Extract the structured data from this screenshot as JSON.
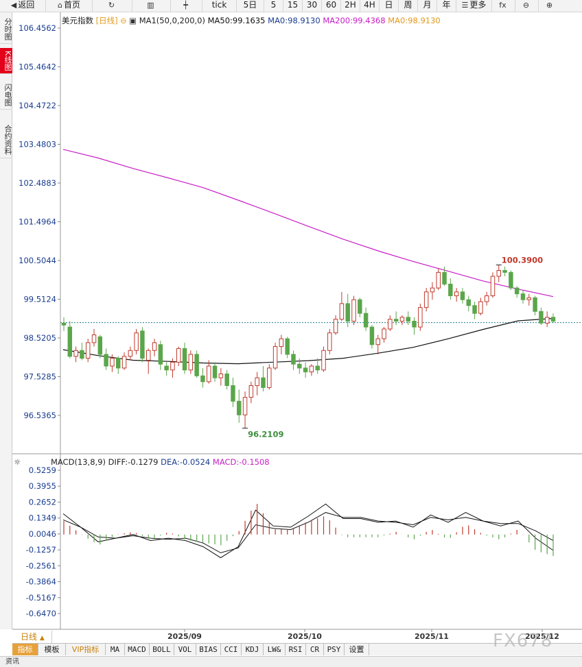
{
  "toolbar": {
    "items": [
      {
        "label": "返回",
        "icon": "back-arrow-icon"
      },
      {
        "label": "首页",
        "icon": "home-icon"
      },
      {
        "label": "",
        "icon": "refresh-icon"
      },
      {
        "label": "",
        "icon": "chart-bars-icon"
      },
      {
        "label": "",
        "icon": "candlestick-icon"
      },
      {
        "label": "tick",
        "icon": ""
      },
      {
        "label": "5日",
        "icon": ""
      },
      {
        "label": "5",
        "icon": ""
      },
      {
        "label": "15",
        "icon": ""
      },
      {
        "label": "30",
        "icon": ""
      },
      {
        "label": "60",
        "icon": ""
      },
      {
        "label": "2H",
        "icon": ""
      },
      {
        "label": "4H",
        "icon": ""
      },
      {
        "label": "日",
        "icon": ""
      },
      {
        "label": "周",
        "icon": ""
      },
      {
        "label": "月",
        "icon": ""
      },
      {
        "label": "年",
        "icon": ""
      },
      {
        "label": "更多",
        "icon": "menu-icon"
      },
      {
        "label": "",
        "icon": "fx-formula-icon"
      },
      {
        "label": "",
        "icon": "zoom-out-icon"
      },
      {
        "label": "",
        "icon": "zoom-in-icon"
      }
    ]
  },
  "side_tabs": [
    "分时图",
    "K线图",
    "闪电图",
    "合约资料"
  ],
  "side_tab_active": 1,
  "main_legend": {
    "symbol": "美元指数",
    "period": "[日线]",
    "ma_name": "MA1(50,0,200,0)",
    "ma50": "MA50:99.1635",
    "ma0": "MA0:98.9130",
    "ma200": "MA200:99.4368",
    "ma0b": "MA0:98.9130"
  },
  "price_axis": [
    "106.4562",
    "105.4642",
    "104.4722",
    "103.4803",
    "102.4883",
    "101.4964",
    "100.5044",
    "99.5124",
    "98.5205",
    "97.5285",
    "96.5365"
  ],
  "annotations": {
    "high": "100.3900",
    "low": "96.2109"
  },
  "macd_legend": {
    "name": "MACD(13,8,9)",
    "diff": "DIFF:-0.1279",
    "dea": "DEA:-0.0524",
    "macd": "MACD:-0.1508"
  },
  "macd_axis": [
    "0.5259",
    "0.3955",
    "0.2652",
    "0.1349",
    "0.0046",
    "-0.1257",
    "-0.2561",
    "-0.3864",
    "-0.5167",
    "-0.6470"
  ],
  "date_axis": [
    "2025/09",
    "2025/10",
    "2025/11",
    "2025/12"
  ],
  "period_tab": "日线",
  "indicator_bar": [
    "指标",
    "模板",
    "VIP指标",
    "MA",
    "MACD",
    "BOLL",
    "VOL",
    "BIAS",
    "CCI",
    "KDJ",
    "LW&",
    "RSI",
    "CR",
    "PSY",
    "设置"
  ],
  "status": "资讯",
  "watermark": "FX678",
  "colors": {
    "up": "#c0392b",
    "down": "#5aa64b",
    "ma200": "#c71ec7",
    "ma50": "#111111",
    "ma0": "#e39a1e",
    "price_label": "#1a3d8f",
    "high_label": "#c0392b",
    "low_label": "#3e8e3e"
  },
  "chart_data": {
    "type": "candlestick",
    "title": "美元指数",
    "candles": [
      [
        98.9,
        99.05,
        98.7,
        98.85
      ],
      [
        98.8,
        98.95,
        98.0,
        98.05
      ],
      [
        98.05,
        98.3,
        97.9,
        98.2
      ],
      [
        98.2,
        98.4,
        97.95,
        98.0
      ],
      [
        98.0,
        98.5,
        97.9,
        98.4
      ],
      [
        98.4,
        98.75,
        98.3,
        98.6
      ],
      [
        98.55,
        98.6,
        98.0,
        98.1
      ],
      [
        98.1,
        98.25,
        97.7,
        97.8
      ],
      [
        97.8,
        98.1,
        97.65,
        98.0
      ],
      [
        98.0,
        98.05,
        97.6,
        97.75
      ],
      [
        97.75,
        98.15,
        97.7,
        98.05
      ],
      [
        98.05,
        98.3,
        97.95,
        98.2
      ],
      [
        98.2,
        98.75,
        98.1,
        98.65
      ],
      [
        98.7,
        98.8,
        97.9,
        98.0
      ],
      [
        97.95,
        98.25,
        97.6,
        98.2
      ],
      [
        98.2,
        98.5,
        98.05,
        98.4
      ],
      [
        98.35,
        98.45,
        97.7,
        97.85
      ],
      [
        97.8,
        97.9,
        97.55,
        97.7
      ],
      [
        97.7,
        98.0,
        97.5,
        97.9
      ],
      [
        97.9,
        98.3,
        97.8,
        98.25
      ],
      [
        98.25,
        98.4,
        97.6,
        97.7
      ],
      [
        97.7,
        98.2,
        97.6,
        98.1
      ],
      [
        98.1,
        98.2,
        97.5,
        97.55
      ],
      [
        97.55,
        97.75,
        97.25,
        97.4
      ],
      [
        97.4,
        97.95,
        97.35,
        97.8
      ],
      [
        97.8,
        97.9,
        97.4,
        97.5
      ],
      [
        97.5,
        97.75,
        97.3,
        97.6
      ],
      [
        97.6,
        97.7,
        97.2,
        97.3
      ],
      [
        97.3,
        97.5,
        96.75,
        96.9
      ],
      [
        96.9,
        97.2,
        96.35,
        96.55
      ],
      [
        96.55,
        97.15,
        96.21,
        97.0
      ],
      [
        97.0,
        97.4,
        96.85,
        97.3
      ],
      [
        97.3,
        97.65,
        97.05,
        97.5
      ],
      [
        97.5,
        97.8,
        97.15,
        97.25
      ],
      [
        97.25,
        97.85,
        97.2,
        97.75
      ],
      [
        97.75,
        98.4,
        97.7,
        98.3
      ],
      [
        98.3,
        98.6,
        98.1,
        98.5
      ],
      [
        98.5,
        98.55,
        98.0,
        98.1
      ],
      [
        98.1,
        98.2,
        97.7,
        97.85
      ],
      [
        97.85,
        98.0,
        97.6,
        97.75
      ],
      [
        97.75,
        97.9,
        97.5,
        97.65
      ],
      [
        97.65,
        97.85,
        97.55,
        97.8
      ],
      [
        97.8,
        98.0,
        97.6,
        97.7
      ],
      [
        97.7,
        98.3,
        97.65,
        98.2
      ],
      [
        98.2,
        98.75,
        98.1,
        98.65
      ],
      [
        98.65,
        99.1,
        98.6,
        99.0
      ],
      [
        99.0,
        99.7,
        98.95,
        99.4
      ],
      [
        99.4,
        99.65,
        98.8,
        98.95
      ],
      [
        98.95,
        99.6,
        98.85,
        99.5
      ],
      [
        99.5,
        99.55,
        99.05,
        99.15
      ],
      [
        99.15,
        99.3,
        98.7,
        98.8
      ],
      [
        98.8,
        98.85,
        98.25,
        98.35
      ],
      [
        98.35,
        98.6,
        98.1,
        98.5
      ],
      [
        98.5,
        98.8,
        98.4,
        98.75
      ],
      [
        98.75,
        99.1,
        98.7,
        99.0
      ],
      [
        99.0,
        99.2,
        98.85,
        98.95
      ],
      [
        98.95,
        99.1,
        98.85,
        99.05
      ],
      [
        99.05,
        99.2,
        98.85,
        98.95
      ],
      [
        98.95,
        99.05,
        98.6,
        98.8
      ],
      [
        98.8,
        99.4,
        98.7,
        99.3
      ],
      [
        99.3,
        99.8,
        99.2,
        99.7
      ],
      [
        99.7,
        99.95,
        99.5,
        99.8
      ],
      [
        99.8,
        100.3,
        99.75,
        100.2
      ],
      [
        100.2,
        100.35,
        99.85,
        99.9
      ],
      [
        99.9,
        100.05,
        99.5,
        99.6
      ],
      [
        99.6,
        99.8,
        99.45,
        99.7
      ],
      [
        99.7,
        99.8,
        99.4,
        99.5
      ],
      [
        99.5,
        99.6,
        99.2,
        99.35
      ],
      [
        99.35,
        99.45,
        99.0,
        99.15
      ],
      [
        99.15,
        99.55,
        99.1,
        99.45
      ],
      [
        99.45,
        99.7,
        99.35,
        99.6
      ],
      [
        99.6,
        100.2,
        99.55,
        100.1
      ],
      [
        100.1,
        100.39,
        99.95,
        100.25
      ],
      [
        100.25,
        100.35,
        100.1,
        100.2
      ],
      [
        100.2,
        100.25,
        99.75,
        99.8
      ],
      [
        99.8,
        99.85,
        99.55,
        99.65
      ],
      [
        99.65,
        99.75,
        99.4,
        99.5
      ],
      [
        99.5,
        99.65,
        99.35,
        99.55
      ],
      [
        99.55,
        99.6,
        99.1,
        99.2
      ],
      [
        99.2,
        99.3,
        98.85,
        98.9
      ],
      [
        98.9,
        99.2,
        98.8,
        99.05
      ],
      [
        99.05,
        99.15,
        98.9,
        98.95
      ]
    ],
    "ma200": [
      103.35,
      103.13,
      102.86,
      102.62,
      102.37,
      102.05,
      101.72,
      101.38,
      101.05,
      100.75,
      100.48,
      100.23,
      99.98,
      99.77,
      99.58
    ],
    "ma50": [
      98.22,
      98.07,
      97.95,
      97.92,
      97.88,
      97.86,
      97.9,
      97.94,
      98.0,
      98.13,
      98.28,
      98.5,
      98.74,
      98.96,
      99.02
    ],
    "macd": {
      "diff": [
        0.17,
        0.06,
        -0.06,
        -0.03,
        0.0,
        -0.05,
        -0.03,
        -0.05,
        -0.1,
        -0.19,
        -0.1,
        0.2,
        0.07,
        0.06,
        0.15,
        0.25,
        0.13,
        0.13,
        0.1,
        0.11,
        0.06,
        0.16,
        0.1,
        0.18,
        0.11,
        0.07,
        0.11,
        -0.03,
        -0.13
      ],
      "dea": [
        0.12,
        0.06,
        -0.02,
        -0.03,
        -0.01,
        -0.03,
        -0.04,
        -0.03,
        -0.07,
        -0.15,
        -0.11,
        0.08,
        0.05,
        0.04,
        0.1,
        0.18,
        0.14,
        0.14,
        0.11,
        0.1,
        0.08,
        0.14,
        0.12,
        0.14,
        0.11,
        0.09,
        0.09,
        0.03,
        -0.05
      ]
    }
  }
}
